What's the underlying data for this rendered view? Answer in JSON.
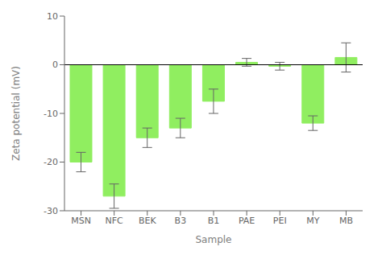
{
  "chart_data": {
    "type": "bar",
    "categories": [
      "MSN",
      "NFC",
      "BEK",
      "B3",
      "B1",
      "PAE",
      "PEI",
      "MY",
      "MB"
    ],
    "values": [
      -20.0,
      -27.0,
      -15.0,
      -13.0,
      -7.5,
      0.5,
      -0.3,
      -12.0,
      1.5
    ],
    "errors": [
      2.0,
      2.5,
      2.0,
      2.0,
      2.5,
      0.8,
      0.8,
      1.5,
      3.0
    ],
    "color": "#90EE60",
    "xlabel": "Sample",
    "ylabel": "Zeta potential (mV)",
    "ylim": [
      -30,
      10
    ],
    "yticks": [
      -30,
      -20,
      -10,
      0,
      10
    ],
    "hline": 0,
    "grid": false
  }
}
